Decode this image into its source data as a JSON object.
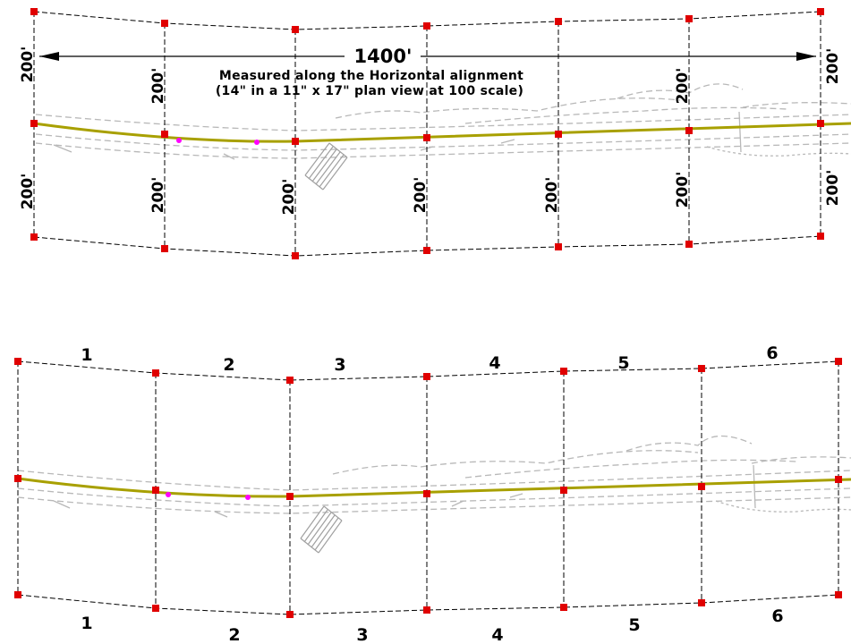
{
  "top_panel": {
    "total_dimension": "1400'",
    "note_line1": "Measured along the Horizontal alignment",
    "note_line2": "(14\" in a 11\" x 17\" plan view at 100 scale)",
    "offset_label": "200'"
  },
  "bottom_panel": {
    "top_segment_labels": [
      "1",
      "2",
      "3",
      "4",
      "5",
      "6"
    ],
    "bottom_segment_labels": [
      "1",
      "2",
      "3",
      "4",
      "5",
      "6"
    ]
  },
  "colors": {
    "alignment": "#a8a000",
    "vertex": "#e00000",
    "curve_point": "#ff00ff",
    "topo": "#b8b8b8",
    "line": "#000000"
  }
}
